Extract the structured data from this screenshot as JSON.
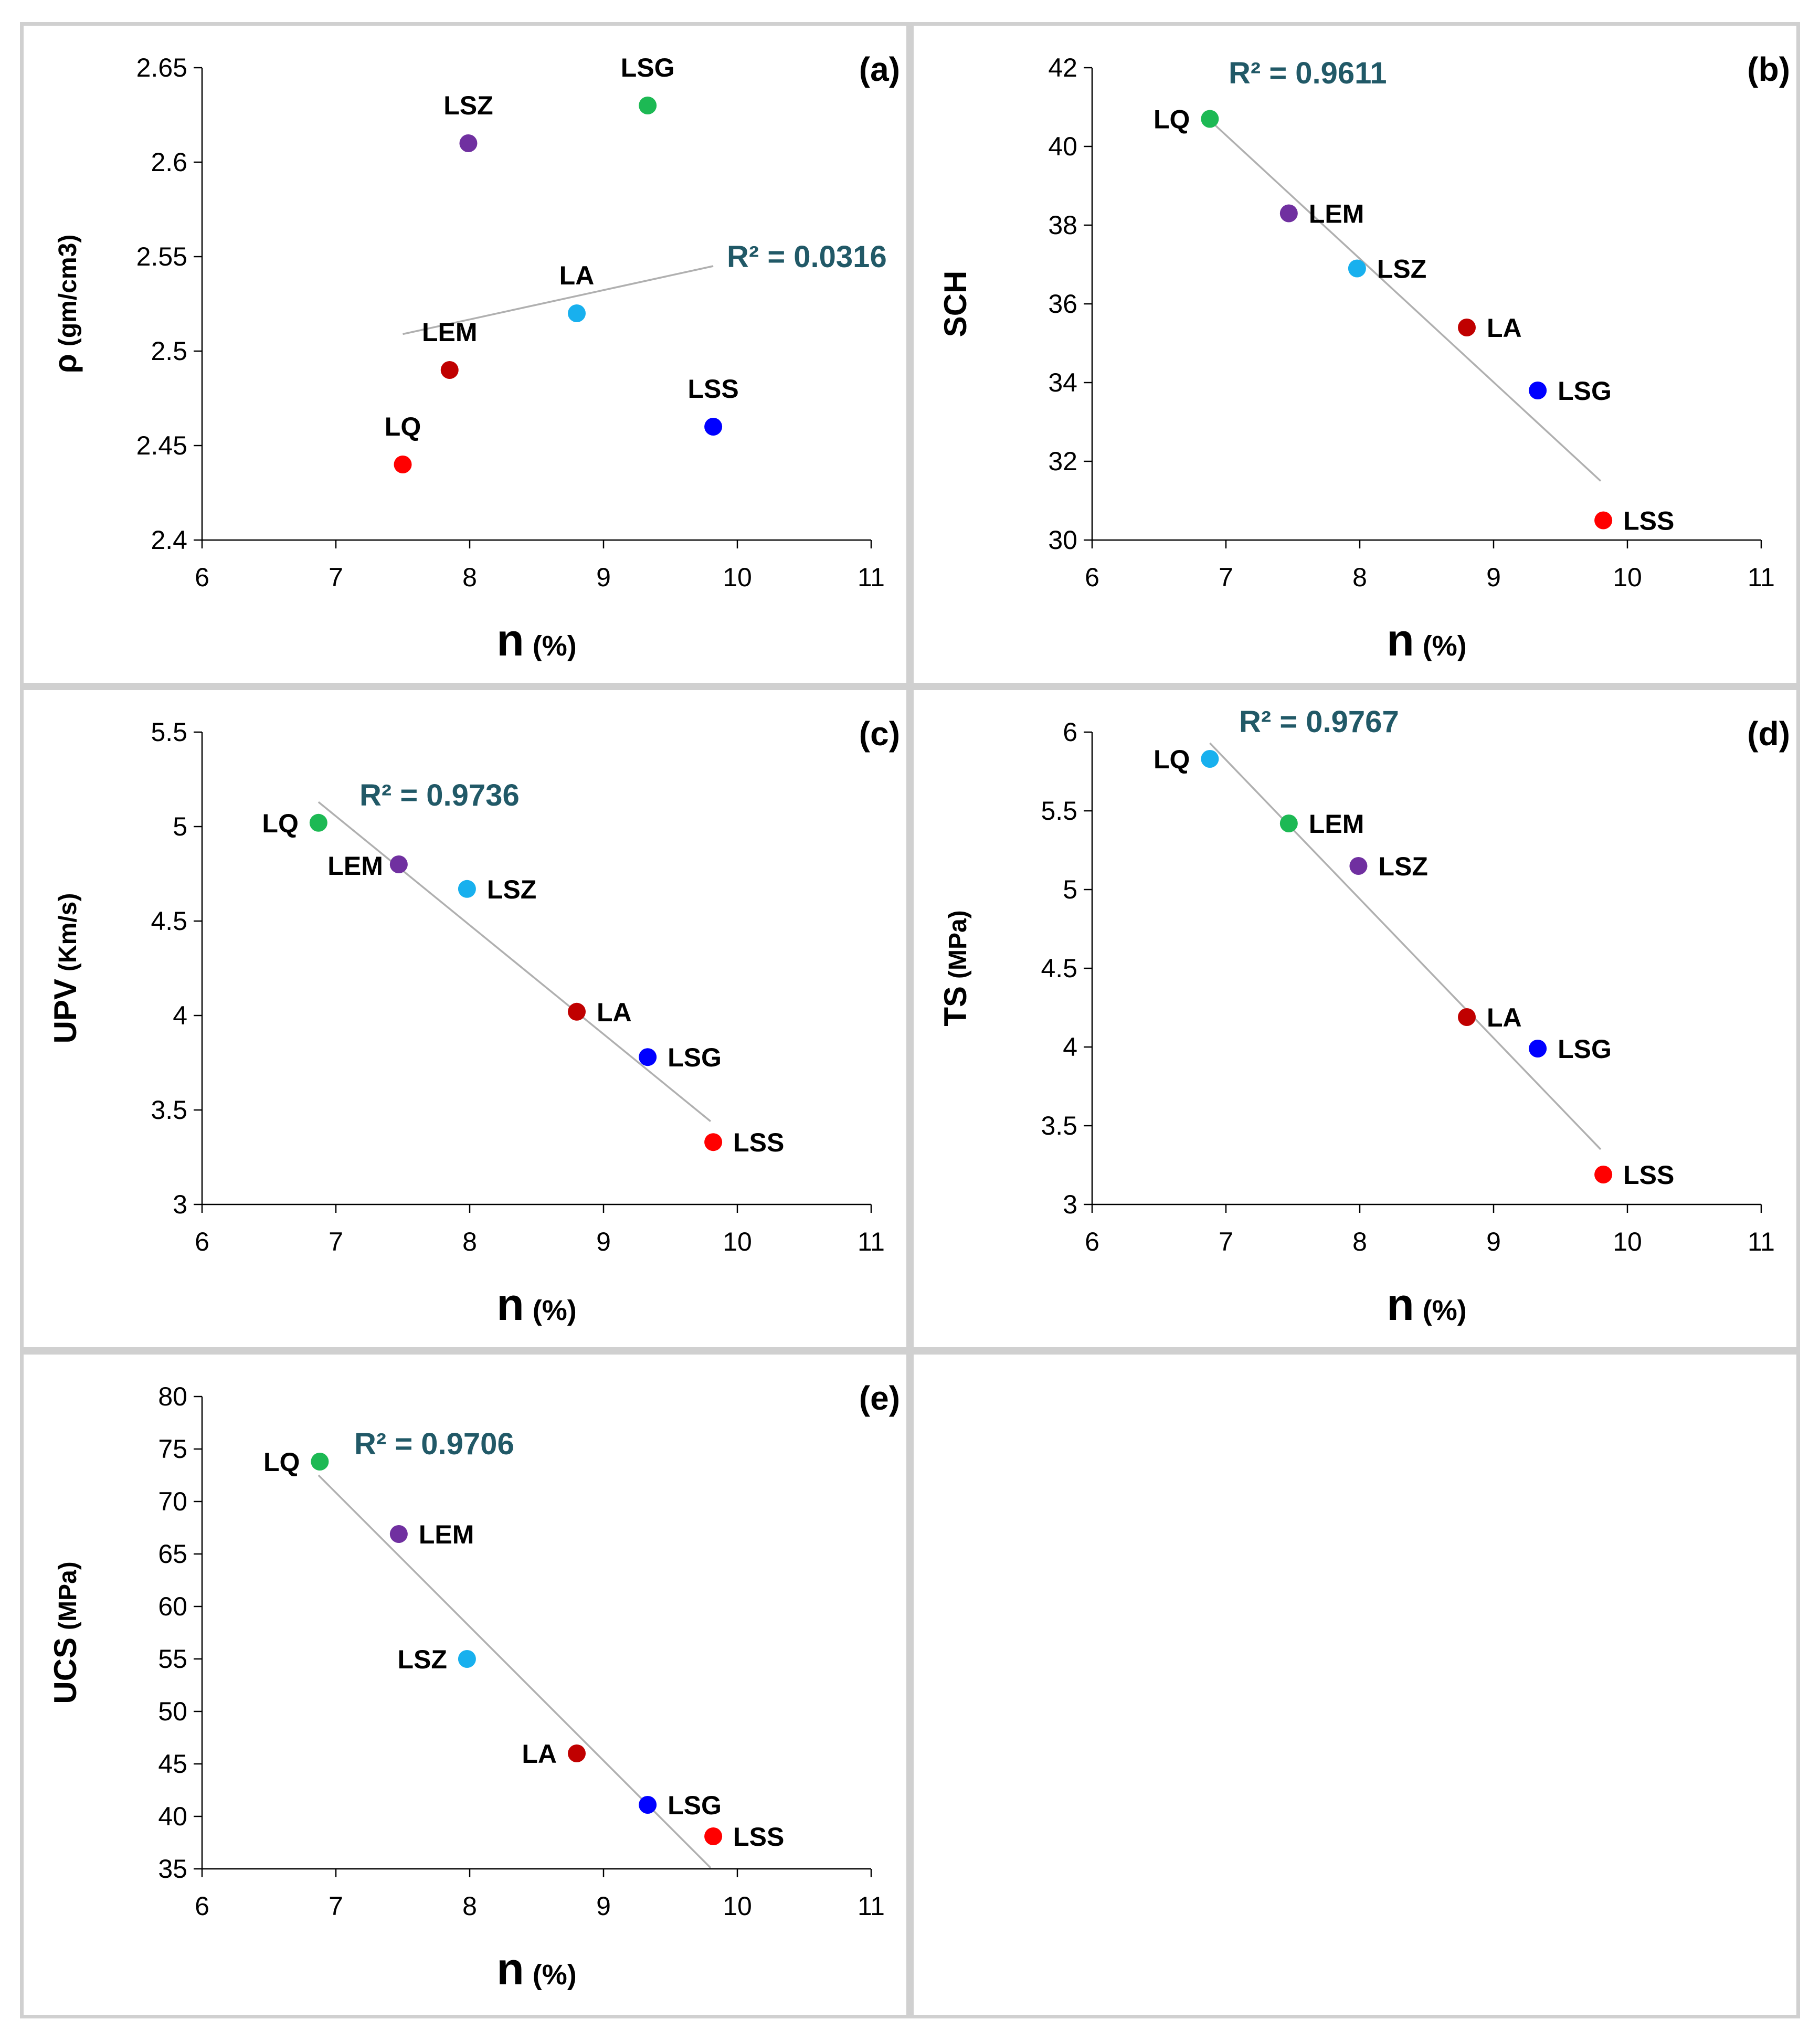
{
  "colors": {
    "LQ_green": "#1db954",
    "LQ_red": "#ff0000",
    "LQ_cyan": "#18b0ee",
    "LEM_purple": "#7030a0",
    "LEM_darkred": "#c00000",
    "LEM_green": "#1db954",
    "LSZ_purple": "#7030a0",
    "LSZ_cyan": "#18b0ee",
    "LA_cyan": "#18b0ee",
    "LA_darkred": "#c00000",
    "LSG_green": "#1db954",
    "LSG_blue": "#0000ff",
    "LSS_blue": "#0000ff",
    "LSS_red": "#ff0000",
    "r2_text": "#215967",
    "trend": "#b0b0b0"
  },
  "chart_data": [
    {
      "id": "a",
      "type": "scatter",
      "panel_label": "(a)",
      "xlabel": "n",
      "xlabel_unit": "(%)",
      "ylabel": "ρ",
      "ylabel_unit": "(gm/cm3)",
      "xlim": [
        6,
        11
      ],
      "xticks": [
        "6",
        "7",
        "8",
        "9",
        "10",
        "11"
      ],
      "ylim": [
        2.4,
        2.65
      ],
      "yticks": [
        "2.4",
        "2.45",
        "2.5",
        "2.55",
        "2.6",
        "2.65"
      ],
      "r2": "R² = 0.0316",
      "trend_x": [
        7.5,
        9.82
      ],
      "trend_y": [
        2.509,
        2.545
      ],
      "points": [
        {
          "label": "LQ",
          "x": 7.5,
          "y": 2.44,
          "color": "#ff0000",
          "label_pos": "above"
        },
        {
          "label": "LEM",
          "x": 7.85,
          "y": 2.49,
          "color": "#c00000",
          "label_pos": "above"
        },
        {
          "label": "LSZ",
          "x": 7.99,
          "y": 2.61,
          "color": "#7030a0",
          "label_pos": "above"
        },
        {
          "label": "LA",
          "x": 8.8,
          "y": 2.52,
          "color": "#18b0ee",
          "label_pos": "above"
        },
        {
          "label": "LSG",
          "x": 9.33,
          "y": 2.63,
          "color": "#1db954",
          "label_pos": "above"
        },
        {
          "label": "LSS",
          "x": 9.82,
          "y": 2.46,
          "color": "#0000ff",
          "label_pos": "above"
        }
      ]
    },
    {
      "id": "b",
      "type": "scatter",
      "panel_label": "(b)",
      "xlabel": "n",
      "xlabel_unit": "(%)",
      "ylabel": "SCH",
      "ylabel_unit": "",
      "xlim": [
        6,
        11
      ],
      "xticks": [
        "6",
        "7",
        "8",
        "9",
        "10",
        "11"
      ],
      "ylim": [
        30,
        42
      ],
      "yticks": [
        "30",
        "32",
        "34",
        "36",
        "38",
        "40",
        "42"
      ],
      "r2": "R² = 0.9611",
      "trend_x": [
        6.9,
        9.8
      ],
      "trend_y": [
        40.6,
        31.5
      ],
      "points": [
        {
          "label": "LQ",
          "x": 6.88,
          "y": 40.7,
          "color": "#1db954",
          "label_pos": "left"
        },
        {
          "label": "LEM",
          "x": 7.47,
          "y": 38.3,
          "color": "#7030a0",
          "label_pos": "right"
        },
        {
          "label": "LSZ",
          "x": 7.98,
          "y": 36.9,
          "color": "#18b0ee",
          "label_pos": "right"
        },
        {
          "label": "LA",
          "x": 8.8,
          "y": 35.4,
          "color": "#c00000",
          "label_pos": "right"
        },
        {
          "label": "LSG",
          "x": 9.33,
          "y": 33.8,
          "color": "#0000ff",
          "label_pos": "right"
        },
        {
          "label": "LSS",
          "x": 9.82,
          "y": 30.5,
          "color": "#ff0000",
          "label_pos": "right"
        }
      ]
    },
    {
      "id": "c",
      "type": "scatter",
      "panel_label": "(c)",
      "xlabel": "n",
      "xlabel_unit": "(%)",
      "ylabel": "UPV",
      "ylabel_unit": "(Km/s)",
      "xlim": [
        6,
        11
      ],
      "xticks": [
        "6",
        "7",
        "8",
        "9",
        "10",
        "11"
      ],
      "ylim": [
        3,
        5.5
      ],
      "yticks": [
        "3",
        "3.5",
        "4",
        "4.5",
        "5",
        "5.5"
      ],
      "r2": "R² = 0.9736",
      "trend_x": [
        6.87,
        9.8
      ],
      "trend_y": [
        5.13,
        3.44
      ],
      "points": [
        {
          "label": "LQ",
          "x": 6.87,
          "y": 5.02,
          "color": "#1db954",
          "label_pos": "left"
        },
        {
          "label": "LEM",
          "x": 7.47,
          "y": 4.8,
          "color": "#7030a0",
          "label_pos": "left-below"
        },
        {
          "label": "LSZ",
          "x": 7.98,
          "y": 4.67,
          "color": "#18b0ee",
          "label_pos": "right"
        },
        {
          "label": "LA",
          "x": 8.8,
          "y": 4.02,
          "color": "#c00000",
          "label_pos": "right"
        },
        {
          "label": "LSG",
          "x": 9.33,
          "y": 3.78,
          "color": "#0000ff",
          "label_pos": "right"
        },
        {
          "label": "LSS",
          "x": 9.82,
          "y": 3.33,
          "color": "#ff0000",
          "label_pos": "right"
        }
      ]
    },
    {
      "id": "d",
      "type": "scatter",
      "panel_label": "(d)",
      "xlabel": "n",
      "xlabel_unit": "(%)",
      "ylabel": "TS",
      "ylabel_unit": "(MPa)",
      "xlim": [
        6,
        11
      ],
      "xticks": [
        "6",
        "7",
        "8",
        "9",
        "10",
        "11"
      ],
      "ylim": [
        3,
        6
      ],
      "yticks": [
        "3",
        "3.5",
        "4",
        "4.5",
        "5",
        "5.5",
        "6"
      ],
      "r2": "R² = 0.9767",
      "trend_x": [
        6.88,
        9.8
      ],
      "trend_y": [
        5.93,
        3.35
      ],
      "points": [
        {
          "label": "LQ",
          "x": 6.88,
          "y": 5.83,
          "color": "#18b0ee",
          "label_pos": "left"
        },
        {
          "label": "LEM",
          "x": 7.47,
          "y": 5.42,
          "color": "#1db954",
          "label_pos": "right"
        },
        {
          "label": "LSZ",
          "x": 7.99,
          "y": 5.15,
          "color": "#7030a0",
          "label_pos": "right"
        },
        {
          "label": "LA",
          "x": 8.8,
          "y": 4.19,
          "color": "#c00000",
          "label_pos": "right"
        },
        {
          "label": "LSG",
          "x": 9.33,
          "y": 3.99,
          "color": "#0000ff",
          "label_pos": "right"
        },
        {
          "label": "LSS",
          "x": 9.82,
          "y": 3.19,
          "color": "#ff0000",
          "label_pos": "right"
        }
      ]
    },
    {
      "id": "e",
      "type": "scatter",
      "panel_label": "(e)",
      "xlabel": "n",
      "xlabel_unit": "(%)",
      "ylabel": "UCS",
      "ylabel_unit": "(MPa)",
      "xlim": [
        6,
        11
      ],
      "xticks": [
        "6",
        "7",
        "8",
        "9",
        "10",
        "11"
      ],
      "ylim": [
        35,
        80
      ],
      "yticks": [
        "35",
        "40",
        "45",
        "50",
        "55",
        "60",
        "65",
        "70",
        "75",
        "80"
      ],
      "r2": "R² = 0.9706",
      "trend_x": [
        6.87,
        9.8
      ],
      "trend_y": [
        72.5,
        35.1
      ],
      "points": [
        {
          "label": "LQ",
          "x": 6.88,
          "y": 73.8,
          "color": "#1db954",
          "label_pos": "left"
        },
        {
          "label": "LEM",
          "x": 7.47,
          "y": 66.9,
          "color": "#7030a0",
          "label_pos": "right"
        },
        {
          "label": "LSZ",
          "x": 7.98,
          "y": 55,
          "color": "#18b0ee",
          "label_pos": "left"
        },
        {
          "label": "LA",
          "x": 8.8,
          "y": 46,
          "color": "#c00000",
          "label_pos": "left"
        },
        {
          "label": "LSG",
          "x": 9.33,
          "y": 41.1,
          "color": "#0000ff",
          "label_pos": "right"
        },
        {
          "label": "LSS",
          "x": 9.82,
          "y": 38.1,
          "color": "#ff0000",
          "label_pos": "right"
        }
      ]
    }
  ]
}
